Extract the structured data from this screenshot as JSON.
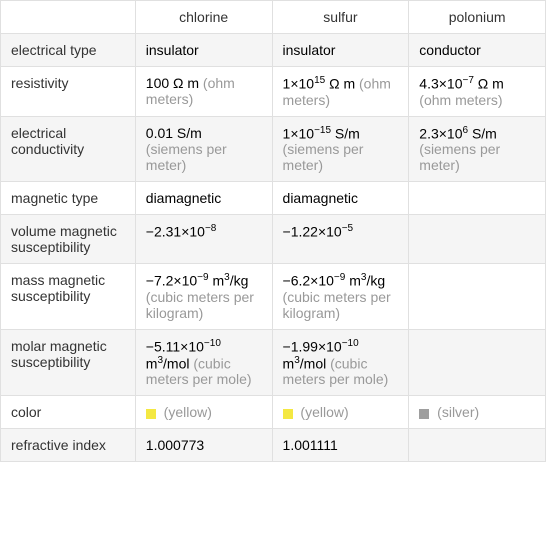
{
  "headers": {
    "col1": "chlorine",
    "col2": "sulfur",
    "col3": "polonium"
  },
  "rows": {
    "electrical_type": {
      "label": "electrical type",
      "chlorine": "insulator",
      "sulfur": "insulator",
      "polonium": "conductor"
    },
    "resistivity": {
      "label": "resistivity",
      "chlorine_val": "100 Ω m",
      "chlorine_unit": " (ohm meters)",
      "sulfur_val": "1×10",
      "sulfur_exp": "15",
      "sulfur_val2": " Ω m",
      "sulfur_unit": " (ohm meters)",
      "polonium_val": "4.3×10",
      "polonium_exp": "−7",
      "polonium_val2": " Ω m",
      "polonium_unit": " (ohm meters)"
    },
    "electrical_conductivity": {
      "label": "electrical conductivity",
      "chlorine_val": "0.01 S/m",
      "chlorine_unit": " (siemens per meter)",
      "sulfur_val": "1×10",
      "sulfur_exp": "−15",
      "sulfur_val2": " S/m",
      "sulfur_unit": " (siemens per meter)",
      "polonium_val": "2.3×10",
      "polonium_exp": "6",
      "polonium_val2": " S/m",
      "polonium_unit": " (siemens per meter)"
    },
    "magnetic_type": {
      "label": "magnetic type",
      "chlorine": "diamagnetic",
      "sulfur": "diamagnetic",
      "polonium": ""
    },
    "volume_magnetic_susceptibility": {
      "label": "volume magnetic susceptibility",
      "chlorine_val": "−2.31×10",
      "chlorine_exp": "−8",
      "sulfur_val": "−1.22×10",
      "sulfur_exp": "−5",
      "polonium": ""
    },
    "mass_magnetic_susceptibility": {
      "label": "mass magnetic susceptibility",
      "chlorine_val": "−7.2×10",
      "chlorine_exp": "−9",
      "chlorine_val2": " m",
      "chlorine_exp2": "3",
      "chlorine_val3": "/kg",
      "chlorine_unit": " (cubic meters per kilogram)",
      "sulfur_val": "−6.2×10",
      "sulfur_exp": "−9",
      "sulfur_val2": " m",
      "sulfur_exp2": "3",
      "sulfur_val3": "/kg",
      "sulfur_unit": " (cubic meters per kilogram)",
      "polonium": ""
    },
    "molar_magnetic_susceptibility": {
      "label": "molar magnetic susceptibility",
      "chlorine_val": "−5.11×10",
      "chlorine_exp": "−10",
      "chlorine_val2": " m",
      "chlorine_exp2": "3",
      "chlorine_val3": "/mol",
      "chlorine_unit": " (cubic meters per mole)",
      "sulfur_val": "−1.99×10",
      "sulfur_exp": "−10",
      "sulfur_val2": " m",
      "sulfur_exp2": "3",
      "sulfur_val3": "/mol",
      "sulfur_unit": " (cubic meters per mole)",
      "polonium": ""
    },
    "color": {
      "label": "color",
      "chlorine_name": " (yellow)",
      "sulfur_name": " (yellow)",
      "polonium_name": " (silver)"
    },
    "refractive_index": {
      "label": "refractive index",
      "chlorine": "1.000773",
      "sulfur": "1.001111",
      "polonium": ""
    }
  },
  "colors": {
    "yellow": "#f4e842",
    "silver": "#9e9e9e"
  }
}
